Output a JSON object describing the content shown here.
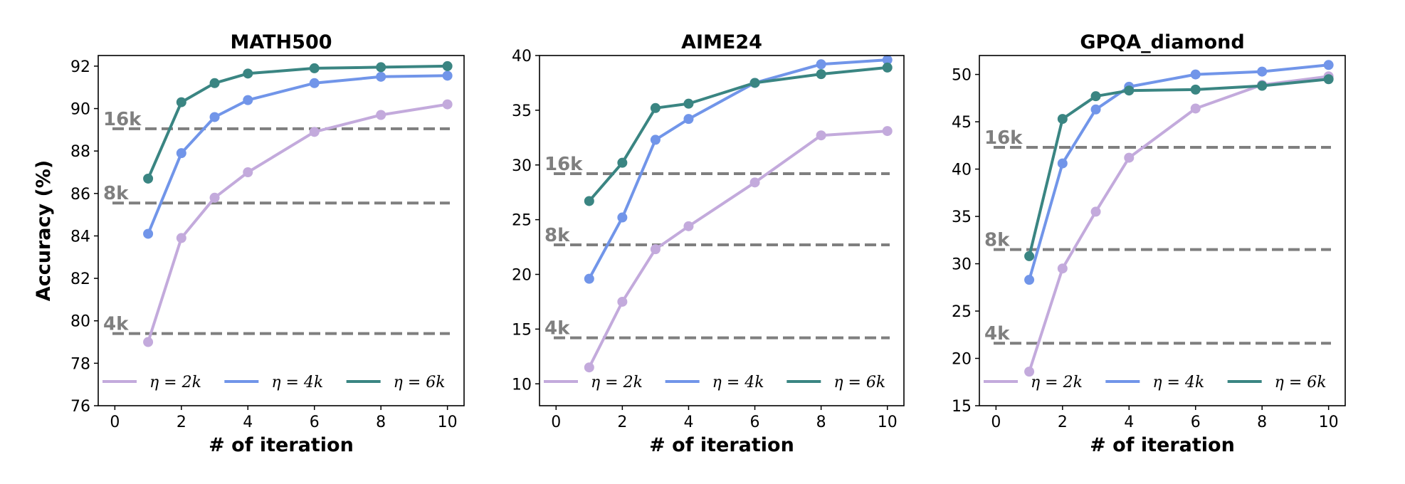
{
  "colors": {
    "eta_2k": "#c3aadc",
    "eta_4k": "#7195e9",
    "eta_6k": "#3a8582",
    "reference": "#7f7f7f"
  },
  "chart_data": [
    {
      "type": "line",
      "title": "MATH500",
      "xlabel": "# of iteration",
      "ylabel": "Accuracy (%)",
      "xlim": [
        -0.5,
        10.5
      ],
      "ylim": [
        76,
        92.5
      ],
      "xticks": [
        0,
        2,
        4,
        6,
        8,
        10
      ],
      "yticks": [
        76,
        78,
        80,
        82,
        84,
        86,
        88,
        90,
        92
      ],
      "legend_position": "bottom",
      "series": [
        {
          "name": "η = 2k",
          "x": [
            1,
            2,
            3,
            4,
            6,
            8,
            10
          ],
          "values": [
            79.0,
            83.9,
            85.8,
            87.0,
            88.9,
            89.7,
            90.2
          ]
        },
        {
          "name": "η = 4k",
          "x": [
            1,
            2,
            3,
            4,
            6,
            8,
            10
          ],
          "values": [
            84.1,
            87.9,
            89.6,
            90.4,
            91.2,
            91.5,
            91.55
          ]
        },
        {
          "name": "η = 6k",
          "x": [
            1,
            2,
            3,
            4,
            6,
            8,
            10
          ],
          "values": [
            86.7,
            90.3,
            91.2,
            91.65,
            91.9,
            91.95,
            92.0
          ]
        }
      ],
      "reference_lines": [
        {
          "label": "16k",
          "value": 89.05
        },
        {
          "label": "8k",
          "value": 85.55
        },
        {
          "label": "4k",
          "value": 79.4
        }
      ]
    },
    {
      "type": "line",
      "title": "AIME24",
      "xlabel": "# of iteration",
      "ylabel": "",
      "xlim": [
        -0.5,
        10.5
      ],
      "ylim": [
        8,
        40
      ],
      "xticks": [
        0,
        2,
        4,
        6,
        8,
        10
      ],
      "yticks": [
        10,
        15,
        20,
        25,
        30,
        35,
        40
      ],
      "legend_position": "bottom",
      "series": [
        {
          "name": "η = 2k",
          "x": [
            1,
            2,
            3,
            4,
            6,
            8,
            10
          ],
          "values": [
            11.5,
            17.5,
            22.3,
            24.4,
            28.4,
            32.7,
            33.1
          ]
        },
        {
          "name": "η = 4k",
          "x": [
            1,
            2,
            3,
            4,
            6,
            8,
            10
          ],
          "values": [
            19.6,
            25.2,
            32.3,
            34.2,
            37.5,
            39.2,
            39.6
          ]
        },
        {
          "name": "η = 6k",
          "x": [
            1,
            2,
            3,
            4,
            6,
            8,
            10
          ],
          "values": [
            26.7,
            30.2,
            35.2,
            35.6,
            37.5,
            38.3,
            38.9
          ]
        }
      ],
      "reference_lines": [
        {
          "label": "16k",
          "value": 29.2
        },
        {
          "label": "8k",
          "value": 22.7
        },
        {
          "label": "4k",
          "value": 14.2
        }
      ]
    },
    {
      "type": "line",
      "title": "GPQA_diamond",
      "xlabel": "# of iteration",
      "ylabel": "",
      "xlim": [
        -0.5,
        10.5
      ],
      "ylim": [
        15,
        52
      ],
      "xticks": [
        0,
        2,
        4,
        6,
        8,
        10
      ],
      "yticks": [
        15,
        20,
        25,
        30,
        35,
        40,
        45,
        50
      ],
      "legend_position": "bottom",
      "series": [
        {
          "name": "η = 2k",
          "x": [
            1,
            2,
            3,
            4,
            6,
            8,
            10
          ],
          "values": [
            18.6,
            29.5,
            35.5,
            41.2,
            46.4,
            48.9,
            49.8
          ]
        },
        {
          "name": "η = 4k",
          "x": [
            1,
            2,
            3,
            4,
            6,
            8,
            10
          ],
          "values": [
            28.3,
            40.6,
            46.3,
            48.7,
            50.0,
            50.3,
            51.0
          ]
        },
        {
          "name": "η = 6k",
          "x": [
            1,
            2,
            3,
            4,
            6,
            8,
            10
          ],
          "values": [
            30.8,
            45.3,
            47.7,
            48.3,
            48.4,
            48.8,
            49.5
          ]
        }
      ],
      "reference_lines": [
        {
          "label": "16k",
          "value": 42.3
        },
        {
          "label": "8k",
          "value": 31.5
        },
        {
          "label": "4k",
          "value": 21.6
        }
      ]
    }
  ]
}
